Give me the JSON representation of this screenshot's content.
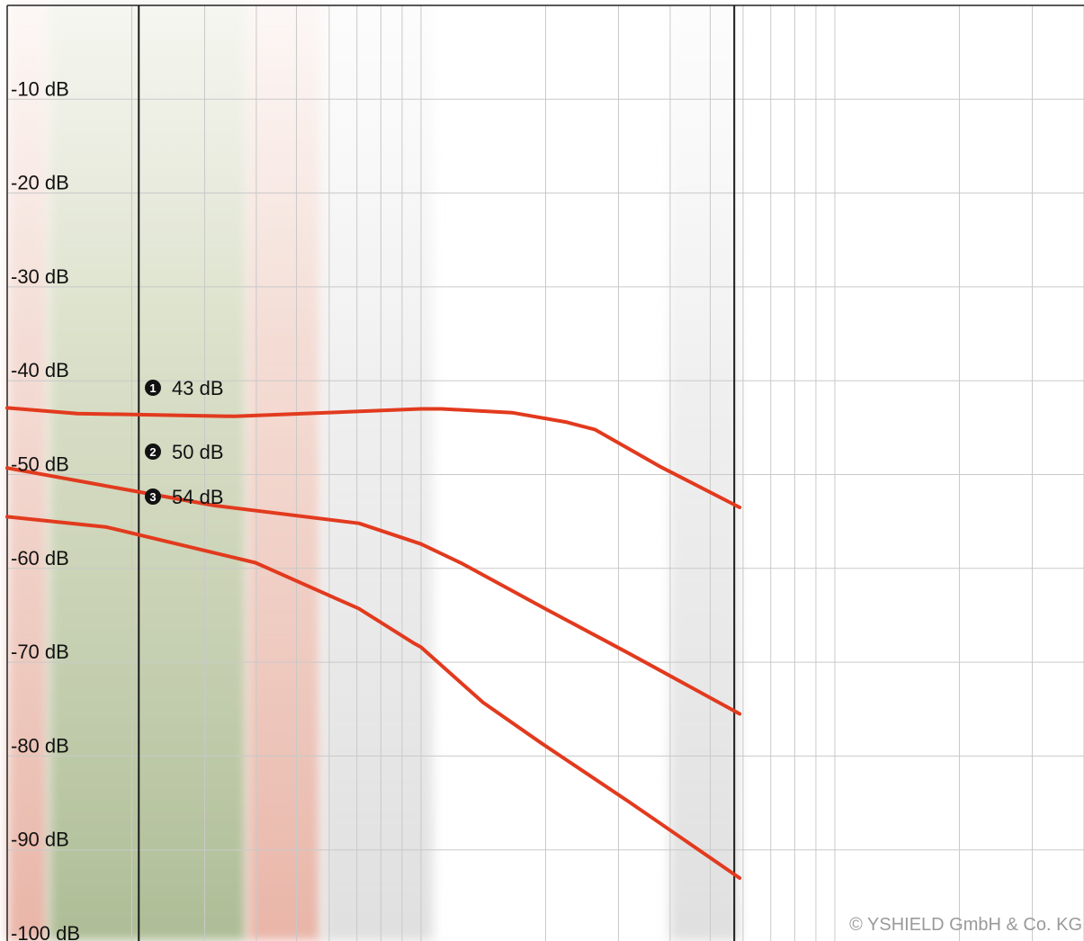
{
  "chart_data": {
    "type": "line",
    "y_unit": "dB",
    "ylim": [
      -100,
      0
    ],
    "x_scale": "log",
    "grid": true,
    "y_ticks": [
      {
        "value": -10,
        "label": "-10 dB"
      },
      {
        "value": -20,
        "label": "-20 dB"
      },
      {
        "value": -30,
        "label": "-30 dB"
      },
      {
        "value": -40,
        "label": "-40 dB"
      },
      {
        "value": -50,
        "label": "-50 dB"
      },
      {
        "value": -60,
        "label": "-60 dB"
      },
      {
        "value": -70,
        "label": "-70 dB"
      },
      {
        "value": -80,
        "label": "-80 dB"
      },
      {
        "value": -90,
        "label": "-90 dB"
      },
      {
        "value": -100,
        "label": "-100 dB"
      }
    ],
    "series": [
      {
        "marker": "1",
        "label": "43 dB",
        "color": "#e23a1e",
        "points": [
          [
            0.0,
            -42.9
          ],
          [
            0.17,
            -43.5
          ],
          [
            0.55,
            -43.8
          ],
          [
            1.0,
            -43.0
          ],
          [
            1.05,
            -43.0
          ],
          [
            1.22,
            -43.4
          ],
          [
            1.35,
            -44.4
          ],
          [
            1.42,
            -45.2
          ],
          [
            1.58,
            -49.2
          ],
          [
            1.77,
            -53.5
          ]
        ]
      },
      {
        "marker": "2",
        "label": "50 dB",
        "color": "#e23a1e",
        "points": [
          [
            0.0,
            -49.3
          ],
          [
            0.2,
            -50.9
          ],
          [
            0.5,
            -53.3
          ],
          [
            0.85,
            -55.2
          ],
          [
            1.0,
            -57.4
          ],
          [
            1.1,
            -59.5
          ],
          [
            1.3,
            -64.3
          ],
          [
            1.5,
            -69.0
          ],
          [
            1.77,
            -75.5
          ]
        ]
      },
      {
        "marker": "3",
        "label": "54 dB",
        "color": "#e23a1e",
        "points": [
          [
            0.0,
            -54.5
          ],
          [
            0.24,
            -55.6
          ],
          [
            0.6,
            -59.4
          ],
          [
            0.85,
            -64.3
          ],
          [
            0.98,
            -67.9
          ],
          [
            1.0,
            -68.4
          ],
          [
            1.15,
            -74.3
          ],
          [
            1.29,
            -78.6
          ],
          [
            1.5,
            -84.8
          ],
          [
            1.77,
            -93.0
          ]
        ]
      }
    ],
    "bands": [
      {
        "name": "red-band-low",
        "x_range": [
          0.0,
          0.1
        ],
        "color": "#e8a89a"
      },
      {
        "name": "green-band",
        "x_range": [
          0.1,
          0.58
        ],
        "color": "#9fb286"
      },
      {
        "name": "red-band-high",
        "x_range": [
          0.58,
          0.76
        ],
        "color": "#e8a89a"
      },
      {
        "name": "grey-band-mid",
        "x_range": [
          0.76,
          1.03
        ],
        "color": "#dcdcdc"
      },
      {
        "name": "grey-band-right",
        "x_range": [
          1.6,
          1.77
        ],
        "color": "#dcdcdc"
      }
    ]
  },
  "copyright": "© YSHIELD GmbH & Co. KG"
}
